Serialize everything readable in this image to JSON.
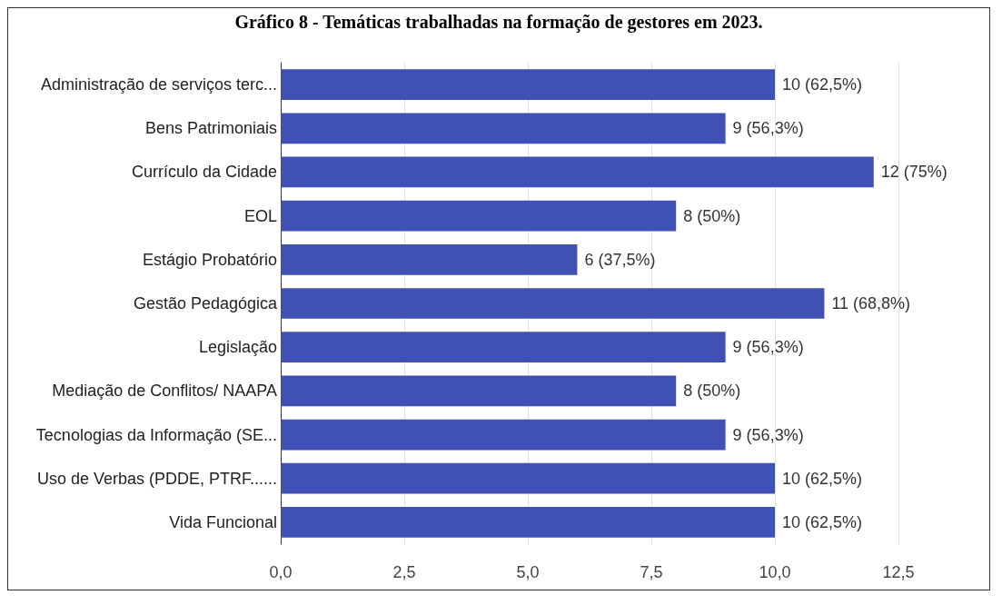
{
  "chart_data": {
    "type": "bar",
    "orientation": "horizontal",
    "title": "Gráfico 8 - Temáticas trabalhadas na formação de gestores em 2023.",
    "categories": [
      "Administração de serviços terc...",
      "Bens Patrimoniais",
      "Currículo da Cidade",
      "EOL",
      "Estágio Probatório",
      "Gestão Pedagógica",
      "Legislação",
      "Mediação de Conflitos/ NAAPA",
      "Tecnologias da Informação (SE...",
      "Uso de Verbas (PDDE, PTRF......",
      "Vida Funcional"
    ],
    "values": [
      10,
      9,
      12,
      8,
      6,
      11,
      9,
      8,
      9,
      10,
      10
    ],
    "value_labels": [
      "10 (62,5%)",
      "9 (56,3%)",
      "12 (75%)",
      "8 (50%)",
      "6 (37,5%)",
      "11 (68,8%)",
      "9 (56,3%)",
      "8 (50%)",
      "9 (56,3%)",
      "10 (62,5%)",
      "10 (62,5%)"
    ],
    "color": "#3f51b5",
    "xlim": [
      0,
      12.5
    ],
    "xticks": [
      {
        "value": 0,
        "label": "0,0"
      },
      {
        "value": 2.5,
        "label": "2,5"
      },
      {
        "value": 5,
        "label": "5,0"
      },
      {
        "value": 7.5,
        "label": "7,5"
      },
      {
        "value": 10,
        "label": "10,0"
      },
      {
        "value": 12.5,
        "label": "12,5"
      }
    ],
    "grid": "x"
  }
}
